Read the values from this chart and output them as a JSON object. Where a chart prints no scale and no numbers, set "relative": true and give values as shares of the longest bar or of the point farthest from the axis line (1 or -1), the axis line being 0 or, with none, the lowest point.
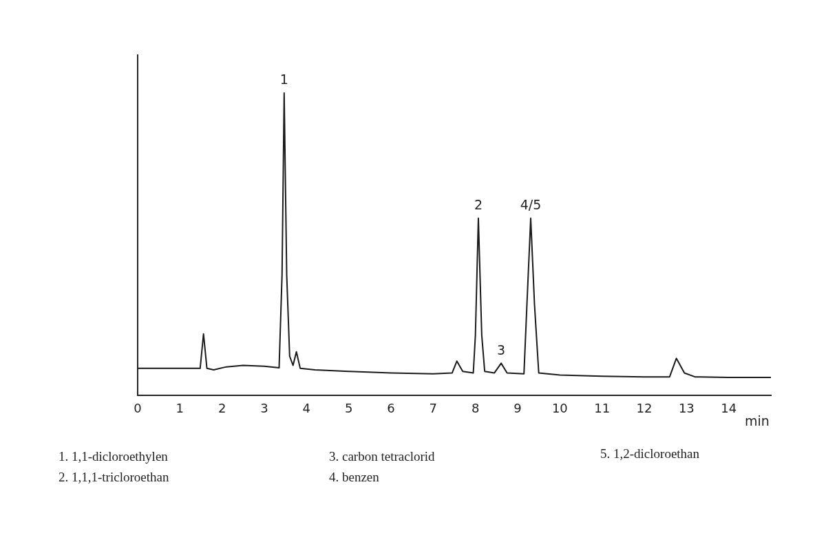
{
  "chart_data": {
    "type": "line",
    "relative": true,
    "xlabel": "min",
    "xlim": [
      0,
      15
    ],
    "xticks": [
      0,
      1,
      2,
      3,
      4,
      5,
      6,
      7,
      8,
      9,
      10,
      11,
      12,
      13,
      14
    ],
    "grid": false,
    "legend": false,
    "marker": "none",
    "line_style": "solid",
    "x": [
      0,
      1.0,
      1.48,
      1.56,
      1.64,
      1.8,
      2.1,
      2.5,
      3.0,
      3.35,
      3.42,
      3.47,
      3.53,
      3.6,
      3.68,
      3.76,
      3.85,
      4.2,
      5,
      6,
      7,
      7.45,
      7.56,
      7.7,
      7.95,
      8.0,
      8.07,
      8.15,
      8.22,
      8.45,
      8.61,
      8.75,
      9.15,
      9.22,
      9.31,
      9.4,
      9.5,
      10,
      11,
      12,
      12.6,
      12.76,
      12.95,
      13.2,
      14,
      15
    ],
    "series": [
      {
        "color": "#1a1a1a",
        "values": [
          0.09,
          0.09,
          0.09,
          0.204,
          0.09,
          0.085,
          0.095,
          0.1,
          0.097,
          0.092,
          0.4,
          1,
          0.4,
          0.13,
          0.1,
          0.145,
          0.09,
          0.085,
          0.08,
          0.075,
          0.072,
          0.075,
          0.114,
          0.08,
          0.075,
          0.2,
          0.586,
          0.2,
          0.08,
          0.075,
          0.107,
          0.075,
          0.072,
          0.3,
          0.586,
          0.3,
          0.075,
          0.068,
          0.064,
          0.062,
          0.062,
          0.123,
          0.075,
          0.062,
          0.06,
          0.06
        ]
      }
    ],
    "annotations": [
      {
        "text": "1",
        "x": 3.47,
        "y": 1
      },
      {
        "text": "2",
        "x": 8.07,
        "y": 0.586
      },
      {
        "text": "3",
        "x": 8.61,
        "y": 0.107
      },
      {
        "text": "4/5",
        "x": 9.31,
        "y": 0.586
      },
      "1. 1,1-dicloroethylen",
      "2. 1,1,1-tricloroethan",
      "3. carbon tetraclorid",
      "4. benzen",
      "5. 1,2-dicloroethan"
    ]
  }
}
